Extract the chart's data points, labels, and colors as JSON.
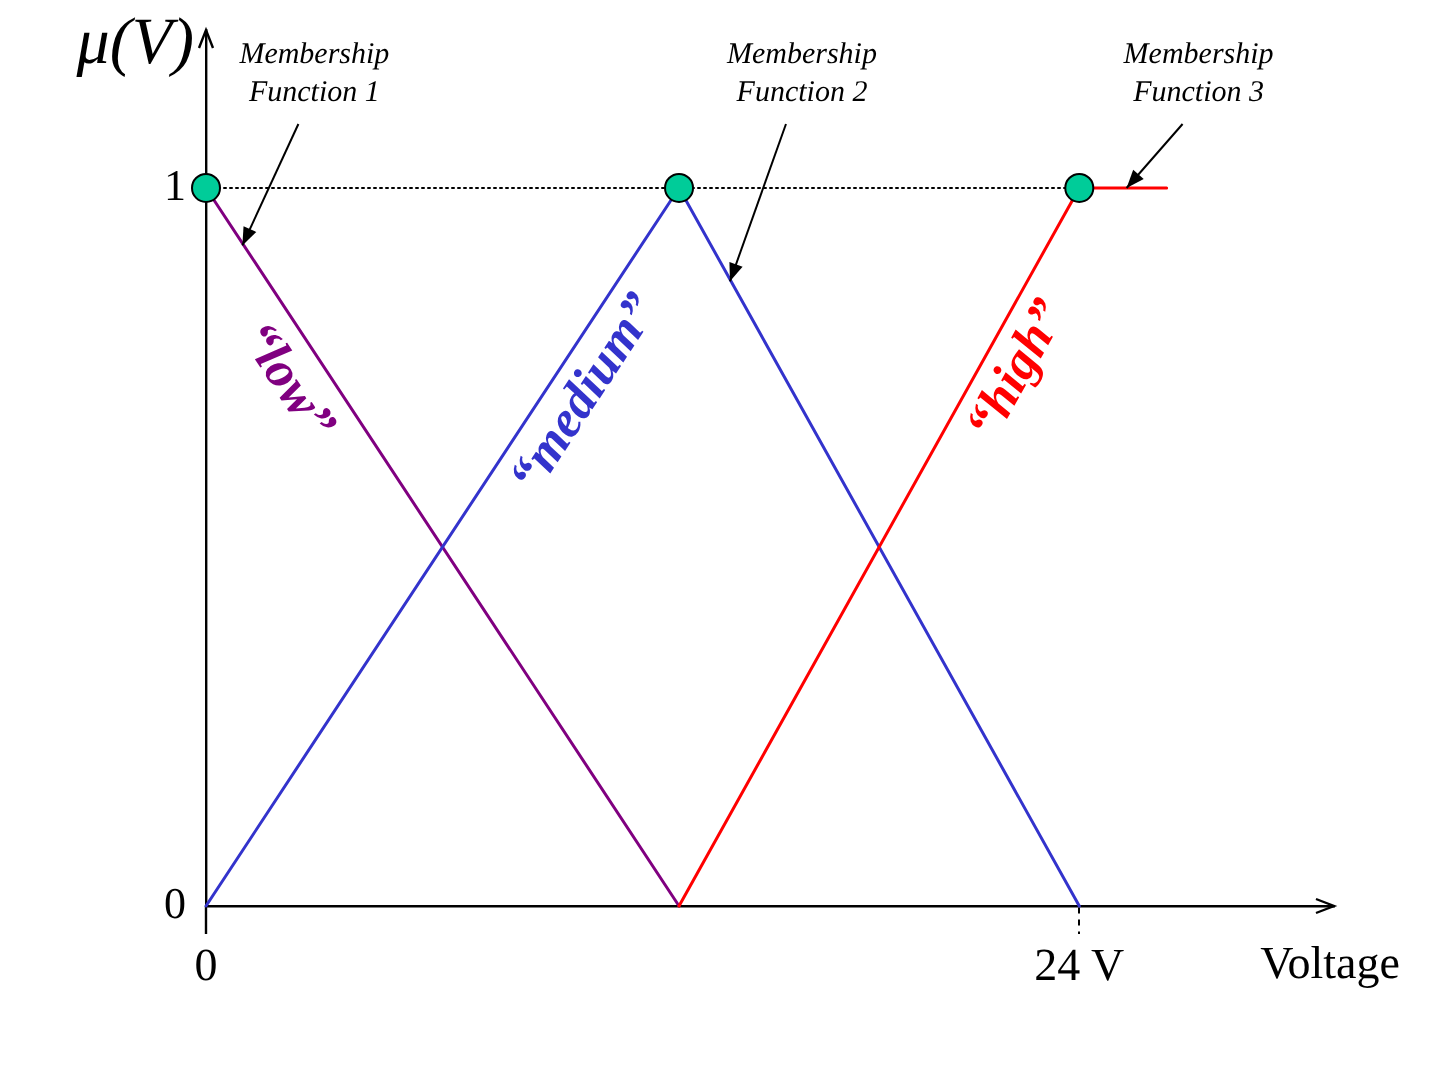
{
  "chart_data": {
    "type": "line",
    "xlabel": "Voltage",
    "ylabel": "μ(V)",
    "xlim": [
      0,
      31
    ],
    "xticks": [
      {
        "value": 0,
        "label": "0"
      },
      {
        "value": 24,
        "label": "24 V"
      }
    ],
    "ylim": [
      0,
      1.22
    ],
    "yticks": [
      0,
      1
    ],
    "series": [
      {
        "name": "“low”",
        "color": "#800080",
        "x": [
          0,
          13
        ],
        "values": [
          1,
          0
        ]
      },
      {
        "name": "“medium”",
        "color": "#3333cc",
        "x": [
          0,
          13,
          24
        ],
        "values": [
          0,
          1,
          0
        ]
      },
      {
        "name": "“high”",
        "color": "#ff0000",
        "x": [
          13,
          24,
          26.4
        ],
        "values": [
          0,
          1,
          1
        ]
      },
      {
        "type": "line",
        "color": "#000000",
        "line_style": "dotted",
        "x": [
          0,
          24
        ],
        "values": [
          1,
          1
        ]
      },
      {
        "type": "scatter",
        "color": "#00cc99",
        "marker": "circle",
        "x": [
          0,
          13,
          24
        ],
        "values": [
          1,
          1,
          1
        ]
      }
    ],
    "annotations": [
      {
        "text": "Membership Function 1",
        "x": 1,
        "y": 0.92
      },
      {
        "text": "Membership Function 2",
        "x": 14.4,
        "y": 0.87
      },
      {
        "text": "Membership Function 3",
        "x": 25.3,
        "y": 1
      }
    ]
  }
}
